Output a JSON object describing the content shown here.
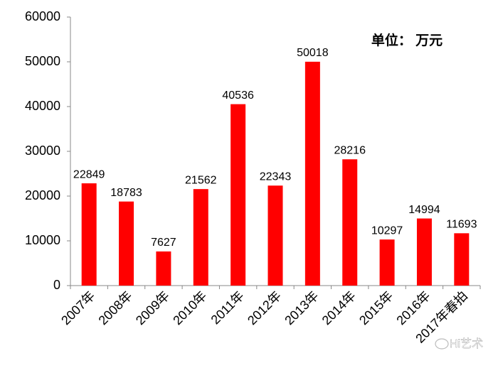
{
  "chart_data": {
    "type": "bar",
    "annotation": "单位： 万元",
    "watermark": "Hi艺术",
    "categories": [
      "2007年",
      "2008年",
      "2009年",
      "2010年",
      "2011年",
      "2012年",
      "2013年",
      "2014年",
      "2015年",
      "2016年",
      "2017年春拍"
    ],
    "values": [
      22849,
      18783,
      7627,
      21562,
      40536,
      22343,
      50018,
      28216,
      10297,
      14994,
      11693
    ],
    "color": "#ff0000",
    "ylim": [
      0,
      60000
    ],
    "yticks": [
      0,
      10000,
      20000,
      30000,
      40000,
      50000,
      60000
    ],
    "grid": false
  }
}
